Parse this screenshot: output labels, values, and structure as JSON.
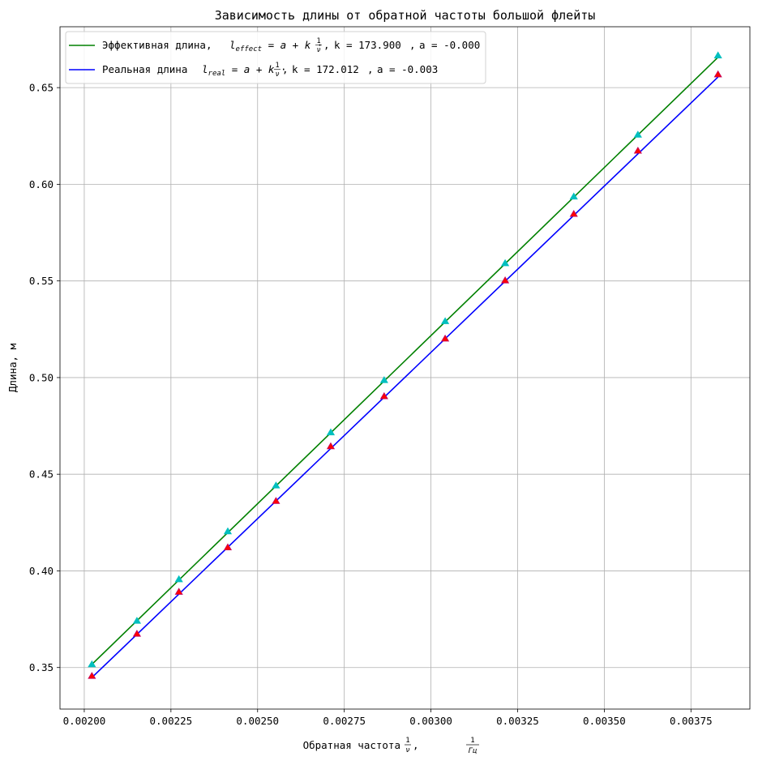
{
  "chart_data": {
    "type": "line",
    "title": "Зависимость длины от обратной частоты большой флейты",
    "xlabel": "Обратная частота",
    "ylabel": "Длина, м",
    "xlim": [
      0.00193,
      0.00392
    ],
    "ylim": [
      0.3285,
      0.6815
    ],
    "grid": true,
    "legend_position": "top-left",
    "x_ticks": [
      0.002,
      0.00225,
      0.0025,
      0.00275,
      0.003,
      0.00325,
      0.0035,
      0.00375
    ],
    "x_tick_labels": [
      "0.00200",
      "0.00225",
      "0.00250",
      "0.00275",
      "0.00300",
      "0.00325",
      "0.00350",
      "0.00375"
    ],
    "y_ticks": [
      0.35,
      0.4,
      0.45,
      0.5,
      0.55,
      0.6,
      0.65
    ],
    "y_tick_labels": [
      "0.35",
      "0.40",
      "0.45",
      "0.50",
      "0.55",
      "0.60",
      "0.65"
    ],
    "series": [
      {
        "name": "Эффективная длина",
        "formula_symbol": "l",
        "formula_sub": "effect",
        "k_text": "k = 173.900",
        "a_text": "a = -0.000",
        "k": 173.9,
        "a": 0.0,
        "line_color": "#008000",
        "marker_color": "#00bfbf",
        "marker_edge": "#00bfbf",
        "x": [
          0.002022,
          0.002152,
          0.002273,
          0.002414,
          0.002553,
          0.002711,
          0.002865,
          0.003041,
          0.003214,
          0.003412,
          0.003597,
          0.003828
        ],
        "y": [
          0.3515,
          0.374,
          0.3955,
          0.4203,
          0.444,
          0.4715,
          0.4985,
          0.529,
          0.559,
          0.5935,
          0.6255,
          0.6665
        ]
      },
      {
        "name": "Реальная длина",
        "formula_symbol": "l",
        "formula_sub": "real",
        "k_text": "k = 172.012",
        "a_text": "a = -0.003",
        "k": 172.012,
        "a": -0.003,
        "line_color": "#0000ff",
        "marker_color": "#ff0000",
        "marker_edge": "#c00060",
        "x": [
          0.002022,
          0.002152,
          0.002273,
          0.002414,
          0.002553,
          0.002711,
          0.002865,
          0.003041,
          0.003214,
          0.003412,
          0.003597,
          0.003828
        ],
        "y": [
          0.3455,
          0.3673,
          0.389,
          0.412,
          0.436,
          0.4643,
          0.4902,
          0.52,
          0.5501,
          0.5845,
          0.6172,
          0.6567
        ]
      }
    ]
  }
}
